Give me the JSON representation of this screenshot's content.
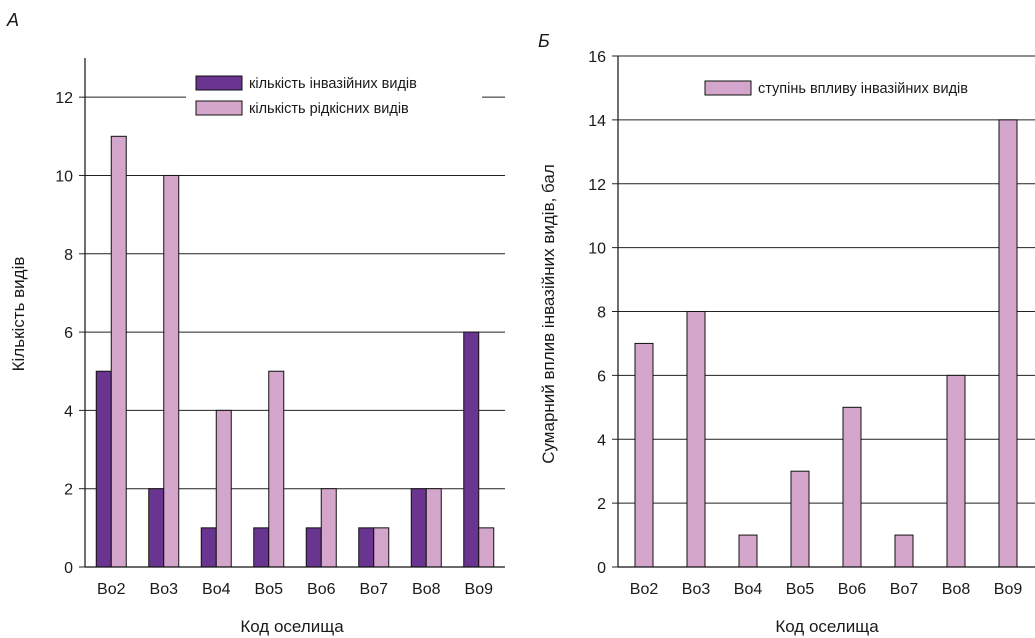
{
  "chart_data": [
    {
      "type": "bar",
      "panel_label": "А",
      "categories": [
        "Bo2",
        "Bo3",
        "Bo4",
        "Bo5",
        "Bo6",
        "Bo7",
        "Bo8",
        "Bo9"
      ],
      "series": [
        {
          "name": "кількість інвазійних видів",
          "color": "#6a3591",
          "values": [
            5,
            2,
            1,
            1,
            1,
            1,
            2,
            6
          ]
        },
        {
          "name": "кількість рідкісних видів",
          "color": "#d4a6cc",
          "values": [
            11,
            10,
            4,
            5,
            2,
            1,
            2,
            1
          ]
        }
      ],
      "xlabel": "Код оселища",
      "ylabel": "Кількість видів",
      "ylim": [
        0,
        13
      ],
      "yticks": [
        0,
        2,
        4,
        6,
        8,
        10,
        12
      ],
      "grid": true,
      "legend_position": "top-right"
    },
    {
      "type": "bar",
      "panel_label": "Б",
      "categories": [
        "Bo2",
        "Bo3",
        "Bo4",
        "Bo5",
        "Bo6",
        "Bo7",
        "Bo8",
        "Bo9"
      ],
      "series": [
        {
          "name": "ступінь впливу інвазійних видів",
          "color": "#d4a6cc",
          "values": [
            7,
            8,
            1,
            3,
            5,
            1,
            6,
            14
          ]
        }
      ],
      "xlabel": "Код оселища",
      "ylabel": "Сумарний вплив інвазійних видів, бал",
      "ylim": [
        0,
        16
      ],
      "yticks": [
        0,
        2,
        4,
        6,
        8,
        10,
        12,
        14,
        16
      ],
      "grid": true,
      "legend_position": "top-right"
    }
  ]
}
